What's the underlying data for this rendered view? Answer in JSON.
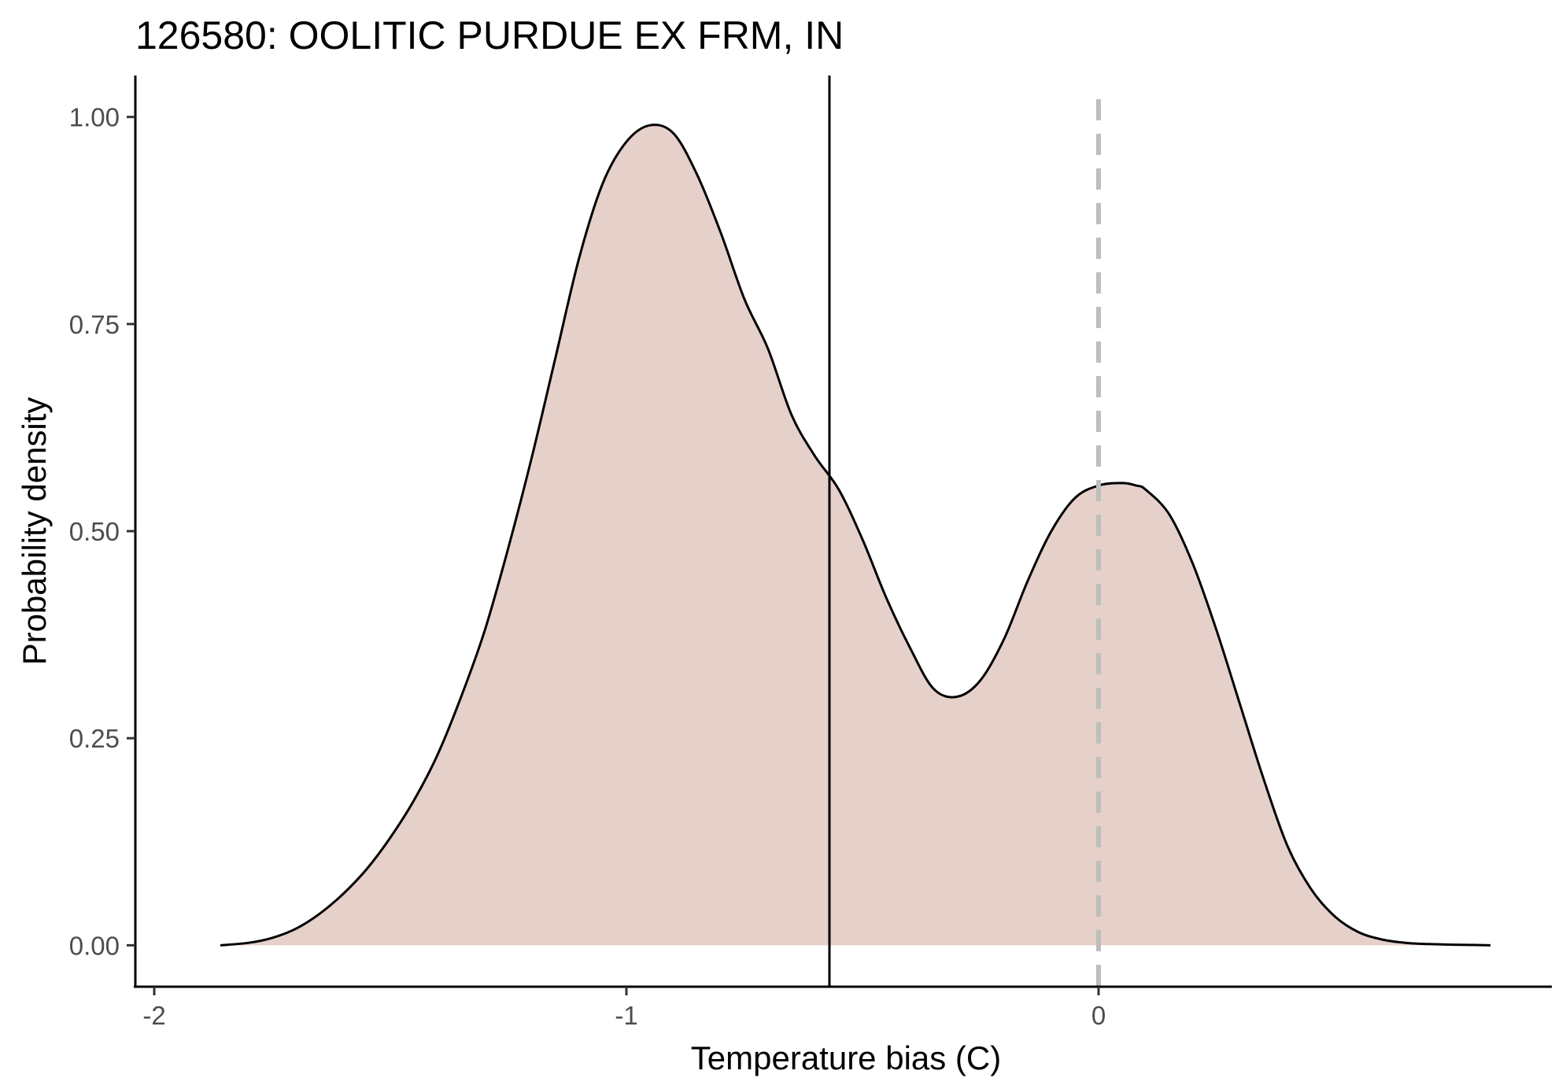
{
  "chart_data": {
    "type": "area",
    "title": "126580: OOLITIC PURDUE EX FRM, IN",
    "xlabel": "Temperature bias (C)",
    "ylabel": "Probability density",
    "xlim": [
      -2.04,
      0.96
    ],
    "ylim": [
      -0.05,
      1.05
    ],
    "x_ticks": [
      {
        "value": -2,
        "label": "-2"
      },
      {
        "value": -1,
        "label": "-1"
      },
      {
        "value": 0,
        "label": "0"
      }
    ],
    "y_ticks": [
      {
        "value": 0,
        "label": "0.00"
      },
      {
        "value": 0.25,
        "label": "0.25"
      },
      {
        "value": 0.5,
        "label": "0.50"
      },
      {
        "value": 0.75,
        "label": "0.75"
      },
      {
        "value": 1,
        "label": "1.00"
      }
    ],
    "grid": false,
    "fill_color": "#e6d0ca",
    "line_color": "#000000",
    "series": [
      {
        "x": [
          -1.86,
          -1.8,
          -1.75,
          -1.7,
          -1.65,
          -1.6,
          -1.55,
          -1.5,
          -1.45,
          -1.4,
          -1.35,
          -1.3,
          -1.25,
          -1.2,
          -1.15,
          -1.1,
          -1.05,
          -1.0,
          -0.95,
          -0.9,
          -0.85,
          -0.8,
          -0.75,
          -0.7,
          -0.65,
          -0.6,
          -0.55,
          -0.5,
          -0.45,
          -0.4,
          -0.35,
          -0.3,
          -0.25,
          -0.2,
          -0.15,
          -0.1,
          -0.05,
          0.0,
          0.05,
          0.08,
          0.1,
          0.15,
          0.2,
          0.25,
          0.3,
          0.35,
          0.4,
          0.45,
          0.5,
          0.55,
          0.6,
          0.65,
          0.7,
          0.75,
          0.8,
          0.83
        ],
        "y": [
          0.0,
          0.003,
          0.009,
          0.02,
          0.038,
          0.062,
          0.092,
          0.13,
          0.175,
          0.23,
          0.3,
          0.38,
          0.48,
          0.59,
          0.71,
          0.83,
          0.92,
          0.97,
          0.99,
          0.98,
          0.93,
          0.86,
          0.78,
          0.72,
          0.64,
          0.59,
          0.55,
          0.49,
          0.42,
          0.36,
          0.31,
          0.3,
          0.32,
          0.37,
          0.44,
          0.5,
          0.54,
          0.555,
          0.558,
          0.555,
          0.55,
          0.52,
          0.46,
          0.38,
          0.29,
          0.2,
          0.12,
          0.068,
          0.035,
          0.016,
          0.007,
          0.003,
          0.0015,
          0.0007,
          0.0003,
          0.0
        ]
      }
    ],
    "reference_lines": [
      {
        "x": -0.57,
        "style": "solid",
        "color": "#000000"
      },
      {
        "x": 0.0,
        "style": "dashed",
        "color": "#bebebe"
      }
    ]
  }
}
